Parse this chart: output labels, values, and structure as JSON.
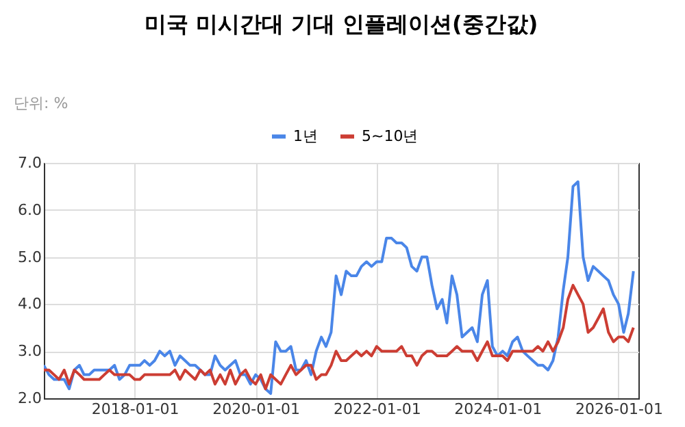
{
  "chart_data": {
    "type": "line",
    "title": "미국 미시간대 기대 인플레이션(중간값)",
    "subtitle": "단위: %",
    "x": [
      "2016-07",
      "2016-08",
      "2016-09",
      "2016-10",
      "2016-11",
      "2016-12",
      "2017-01",
      "2017-02",
      "2017-03",
      "2017-04",
      "2017-05",
      "2017-06",
      "2017-07",
      "2017-08",
      "2017-09",
      "2017-10",
      "2017-11",
      "2017-12",
      "2018-01",
      "2018-02",
      "2018-03",
      "2018-04",
      "2018-05",
      "2018-06",
      "2018-07",
      "2018-08",
      "2018-09",
      "2018-10",
      "2018-11",
      "2018-12",
      "2019-01",
      "2019-02",
      "2019-03",
      "2019-04",
      "2019-05",
      "2019-06",
      "2019-07",
      "2019-08",
      "2019-09",
      "2019-10",
      "2019-11",
      "2019-12",
      "2020-01",
      "2020-02",
      "2020-03",
      "2020-04",
      "2020-05",
      "2020-06",
      "2020-07",
      "2020-08",
      "2020-09",
      "2020-10",
      "2020-11",
      "2020-12",
      "2021-01",
      "2021-02",
      "2021-03",
      "2021-04",
      "2021-05",
      "2021-06",
      "2021-07",
      "2021-08",
      "2021-09",
      "2021-10",
      "2021-11",
      "2021-12",
      "2022-01",
      "2022-02",
      "2022-03",
      "2022-04",
      "2022-05",
      "2022-06",
      "2022-07",
      "2022-08",
      "2022-09",
      "2022-10",
      "2022-11",
      "2022-12",
      "2023-01",
      "2023-02",
      "2023-03",
      "2023-04",
      "2023-05",
      "2023-06",
      "2023-07",
      "2023-08",
      "2023-09",
      "2023-10",
      "2023-11",
      "2023-12",
      "2024-01",
      "2024-02",
      "2024-03",
      "2024-04",
      "2024-05",
      "2024-06",
      "2024-07",
      "2024-08",
      "2024-09",
      "2024-10",
      "2024-11",
      "2024-12",
      "2025-01",
      "2025-02",
      "2025-03",
      "2025-04",
      "2025-05",
      "2025-06",
      "2025-07",
      "2025-08",
      "2025-09",
      "2025-10",
      "2025-11",
      "2025-12",
      "2026-01",
      "2026-02",
      "2026-03",
      "2026-04"
    ],
    "series": [
      {
        "name": "1년",
        "color": "#4a86e8",
        "values": [
          2.7,
          2.5,
          2.4,
          2.4,
          2.4,
          2.2,
          2.6,
          2.7,
          2.5,
          2.5,
          2.6,
          2.6,
          2.6,
          2.6,
          2.7,
          2.4,
          2.5,
          2.7,
          2.7,
          2.7,
          2.8,
          2.7,
          2.8,
          3.0,
          2.9,
          3.0,
          2.7,
          2.9,
          2.8,
          2.7,
          2.7,
          2.6,
          2.5,
          2.5,
          2.9,
          2.7,
          2.6,
          2.7,
          2.8,
          2.5,
          2.5,
          2.3,
          2.5,
          2.4,
          2.2,
          2.1,
          3.2,
          3.0,
          3.0,
          3.1,
          2.6,
          2.6,
          2.8,
          2.5,
          3.0,
          3.3,
          3.1,
          3.4,
          4.6,
          4.2,
          4.7,
          4.6,
          4.6,
          4.8,
          4.9,
          4.8,
          4.9,
          4.9,
          5.4,
          5.4,
          5.3,
          5.3,
          5.2,
          4.8,
          4.7,
          5.0,
          5.0,
          4.4,
          3.9,
          4.1,
          3.6,
          4.6,
          4.2,
          3.3,
          3.4,
          3.5,
          3.2,
          4.2,
          4.5,
          3.1,
          2.9,
          3.0,
          2.9,
          3.2,
          3.3,
          3.0,
          2.9,
          2.8,
          2.7,
          2.7,
          2.6,
          2.8,
          3.3,
          4.3,
          5.0,
          6.5,
          6.6,
          5.0,
          4.5,
          4.8,
          4.7,
          4.6,
          4.5,
          4.2,
          4.0,
          3.4,
          3.8,
          4.7
        ]
      },
      {
        "name": "5~10년",
        "color": "#cc3d33",
        "values": [
          2.6,
          2.6,
          2.5,
          2.4,
          2.6,
          2.3,
          2.6,
          2.5,
          2.4,
          2.4,
          2.4,
          2.4,
          2.5,
          2.6,
          2.5,
          2.5,
          2.5,
          2.5,
          2.4,
          2.4,
          2.5,
          2.5,
          2.5,
          2.5,
          2.5,
          2.5,
          2.6,
          2.4,
          2.6,
          2.5,
          2.4,
          2.6,
          2.5,
          2.6,
          2.3,
          2.5,
          2.3,
          2.6,
          2.3,
          2.5,
          2.6,
          2.4,
          2.3,
          2.5,
          2.2,
          2.5,
          2.4,
          2.3,
          2.5,
          2.7,
          2.5,
          2.6,
          2.7,
          2.7,
          2.4,
          2.5,
          2.5,
          2.7,
          3.0,
          2.8,
          2.8,
          2.9,
          3.0,
          2.9,
          3.0,
          2.9,
          3.1,
          3.0,
          3.0,
          3.0,
          3.0,
          3.1,
          2.9,
          2.9,
          2.7,
          2.9,
          3.0,
          3.0,
          2.9,
          2.9,
          2.9,
          3.0,
          3.1,
          3.0,
          3.0,
          3.0,
          2.8,
          3.0,
          3.2,
          2.9,
          2.9,
          2.9,
          2.8,
          3.0,
          3.0,
          3.0,
          3.0,
          3.0,
          3.1,
          3.0,
          3.2,
          3.0,
          3.2,
          3.5,
          4.1,
          4.4,
          4.2,
          4.0,
          3.4,
          3.5,
          3.7,
          3.9,
          3.4,
          3.2,
          3.3,
          3.3,
          3.2,
          3.5
        ]
      }
    ],
    "xlim": [
      "2016-07-01",
      "2026-05-01"
    ],
    "xticks": [
      "2018-01-01",
      "2020-01-01",
      "2022-01-01",
      "2024-01-01",
      "2026-01-01"
    ],
    "ylim": [
      2.0,
      7.0
    ],
    "yticks": [
      {
        "value": 2,
        "label": "2.0"
      },
      {
        "value": 3,
        "label": "3.0"
      },
      {
        "value": 4,
        "label": "4.0"
      },
      {
        "value": 5,
        "label": "5.0"
      },
      {
        "value": 6,
        "label": "6.0"
      },
      {
        "value": 7,
        "label": "7.0"
      }
    ],
    "grid": true,
    "legend": "top",
    "line_style": "solid"
  }
}
